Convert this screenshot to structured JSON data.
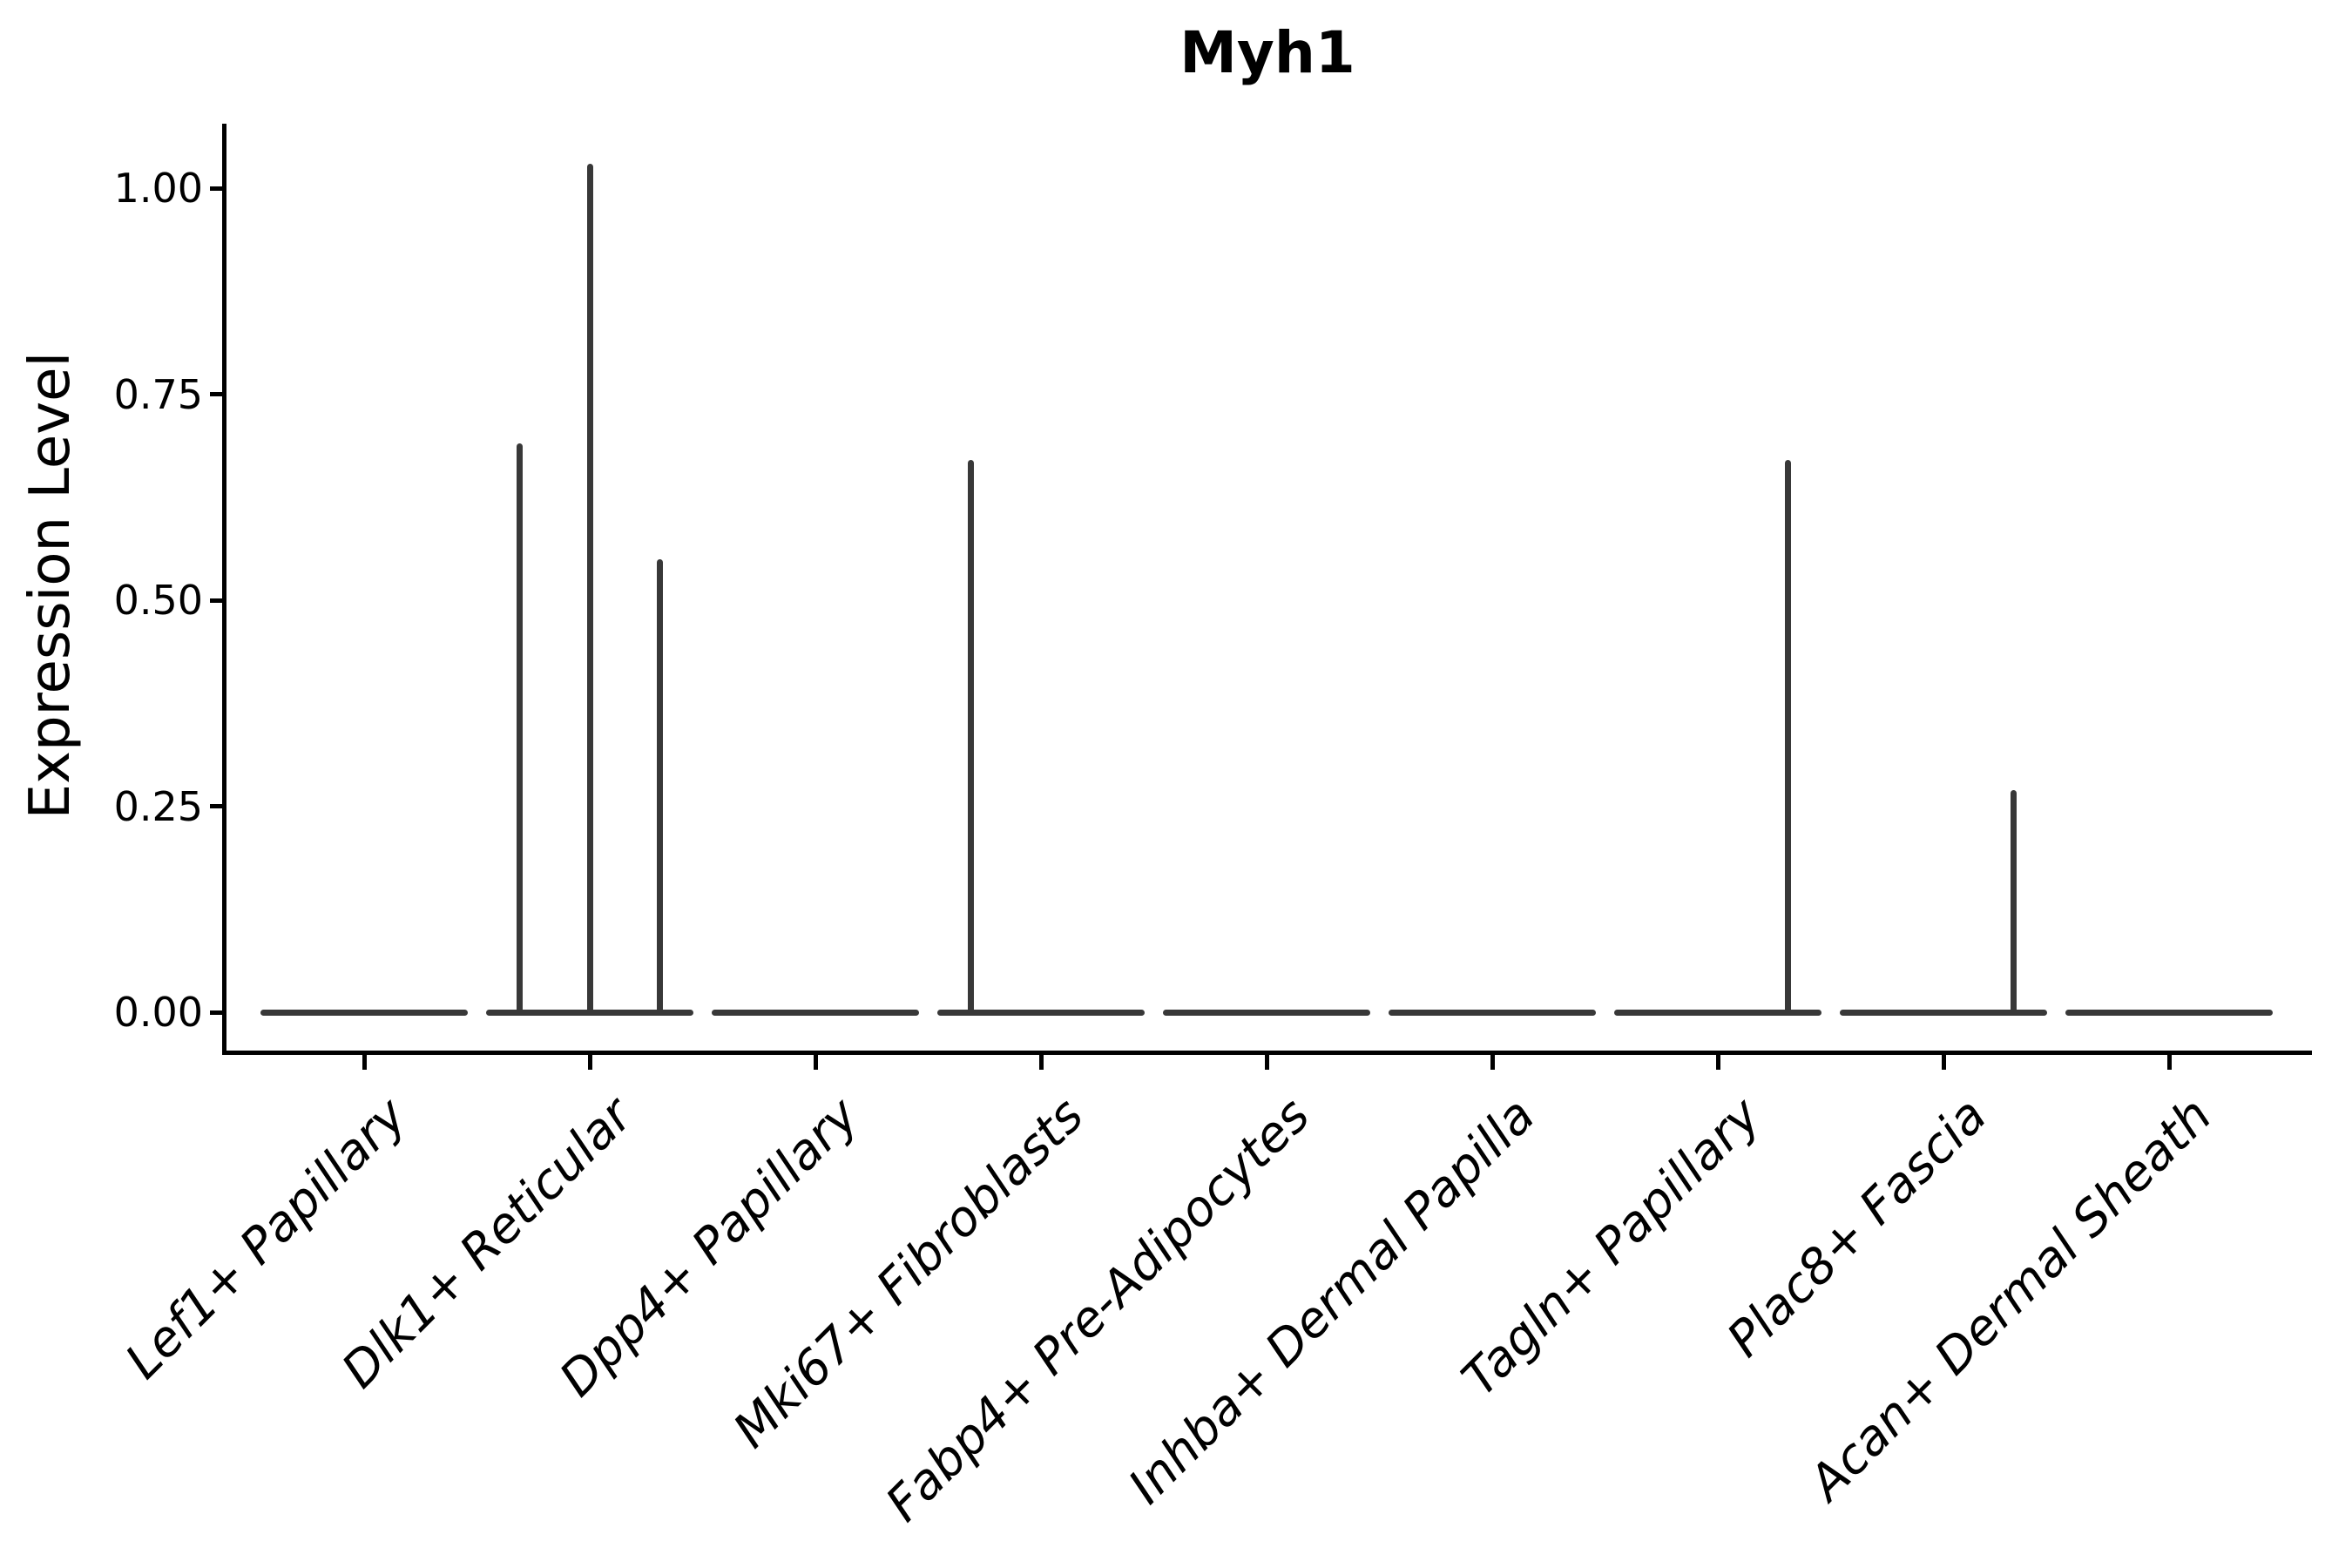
{
  "title": "Myh1",
  "chart_data": {
    "type": "violin",
    "title": "Myh1",
    "ylabel": "Expression Level",
    "xlabel": "",
    "y_tick_labels": [
      "0.00",
      "0.25",
      "0.50",
      "0.75",
      "1.00"
    ],
    "y_tick_values": [
      0,
      0.25,
      0.5,
      0.75,
      1.0
    ],
    "ylim": [
      -0.05,
      1.08
    ],
    "grid": false,
    "legend": "none",
    "violin_color": "#383838",
    "axis_color": "#000000",
    "categories": [
      "Lef1+ Papillary",
      "Dlk1+ Reticular",
      "Dpp4+ Papillary",
      "Mki67+ Fibroblasts",
      "Fabp4+ Pre-Adipocytes",
      "Inhba+ Dermal Papilla",
      "Tagln+ Papillary",
      "Plac8+ Fascia",
      "Acan+ Dermal Sheath"
    ],
    "series": [
      {
        "category": "Lef1+ Papillary",
        "base_at_zero": true,
        "spikes": []
      },
      {
        "category": "Dlk1+ Reticular",
        "base_at_zero": true,
        "spikes": [
          {
            "offset": -0.31,
            "value": 0.69
          },
          {
            "offset": 0.0,
            "value": 1.03
          },
          {
            "offset": 0.31,
            "value": 0.55
          }
        ]
      },
      {
        "category": "Dpp4+ Papillary",
        "base_at_zero": true,
        "spikes": []
      },
      {
        "category": "Mki67+ Fibroblasts",
        "base_at_zero": true,
        "spikes": [
          {
            "offset": -0.31,
            "value": 0.67
          }
        ]
      },
      {
        "category": "Fabp4+ Pre-Adipocytes",
        "base_at_zero": true,
        "spikes": []
      },
      {
        "category": "Inhba+ Dermal Papilla",
        "base_at_zero": true,
        "spikes": []
      },
      {
        "category": "Tagln+ Papillary",
        "base_at_zero": true,
        "spikes": [
          {
            "offset": 0.31,
            "value": 0.67
          }
        ]
      },
      {
        "category": "Plac8+ Fascia",
        "base_at_zero": true,
        "spikes": [
          {
            "offset": 0.31,
            "value": 0.27
          }
        ]
      },
      {
        "category": "Acan+ Dermal Sheath",
        "base_at_zero": true,
        "spikes": []
      }
    ]
  }
}
